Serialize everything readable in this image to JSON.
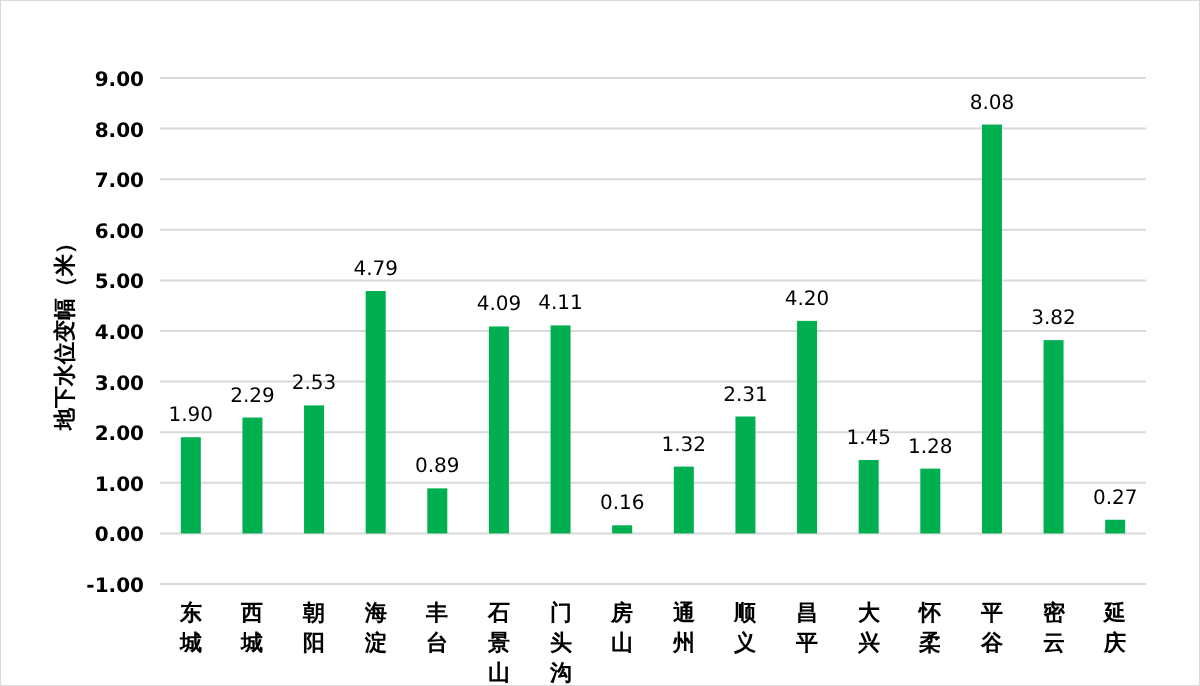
{
  "chart_data": {
    "type": "bar",
    "ylabel": "地下水位变幅（米）",
    "categories": [
      "东城",
      "西城",
      "朝阳",
      "海淀",
      "丰台",
      "石景山",
      "门头沟",
      "房山",
      "通州",
      "顺义",
      "昌平",
      "大兴",
      "怀柔",
      "平谷",
      "密云",
      "延庆"
    ],
    "values": [
      1.9,
      2.29,
      2.53,
      4.79,
      0.89,
      4.09,
      4.11,
      0.16,
      1.32,
      2.31,
      4.2,
      1.45,
      1.28,
      8.08,
      3.82,
      0.27
    ],
    "value_labels": [
      "1.90",
      "2.29",
      "2.53",
      "4.79",
      "0.89",
      "4.09",
      "4.11",
      "0.16",
      "1.32",
      "2.31",
      "4.20",
      "1.45",
      "1.28",
      "8.08",
      "3.82",
      "0.27"
    ],
    "color": "#00b050",
    "ylim": [
      -1,
      9
    ],
    "yticks": [
      {
        "value": -1,
        "label": "-1.00"
      },
      {
        "value": 0,
        "label": "0.00"
      },
      {
        "value": 1,
        "label": "1.00"
      },
      {
        "value": 2,
        "label": "2.00"
      },
      {
        "value": 3,
        "label": "3.00"
      },
      {
        "value": 4,
        "label": "4.00"
      },
      {
        "value": 5,
        "label": "5.00"
      },
      {
        "value": 6,
        "label": "6.00"
      },
      {
        "value": 7,
        "label": "7.00"
      },
      {
        "value": 8,
        "label": "8.00"
      },
      {
        "value": 9,
        "label": "9.00"
      }
    ],
    "grid": "y"
  }
}
